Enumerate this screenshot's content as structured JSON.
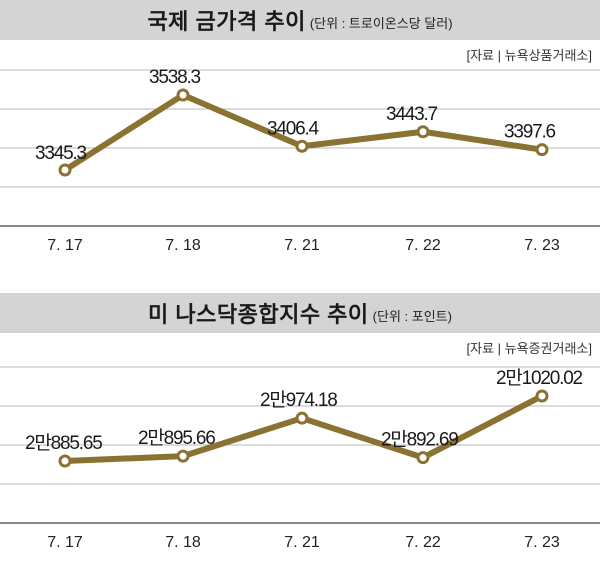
{
  "colors": {
    "line": "#8a7232",
    "title_bg": "#d4d4d4",
    "grid": "#b8b8b8"
  },
  "chart_data": [
    {
      "type": "line",
      "title": "국제 금가격 추이",
      "unit": "(단위 : 트로이온스당 달러)",
      "source": "[자료 | 뉴욕상품거래소]",
      "categories": [
        "7. 17",
        "7. 18",
        "7. 21",
        "7. 22",
        "7. 23"
      ],
      "values": [
        3345.3,
        3538.3,
        3406.4,
        3443.7,
        3397.6
      ],
      "labels": [
        "3345.3",
        "3538.3",
        "3406.4",
        "3443.7",
        "3397.6"
      ],
      "grid": true
    },
    {
      "type": "line",
      "title": "미 나스닥종합지수 추이",
      "unit": "(단위 : 포인트)",
      "source": "[자료 | 뉴욕증권거래소]",
      "categories": [
        "7. 17",
        "7. 18",
        "7. 21",
        "7. 22",
        "7. 23"
      ],
      "values": [
        20885.65,
        20895.66,
        20974.18,
        20892.69,
        21020.02
      ],
      "labels": [
        "2만885.65",
        "2만895.66",
        "2만974.18",
        "2만892.69",
        "2만1020.02"
      ],
      "grid": true
    }
  ]
}
